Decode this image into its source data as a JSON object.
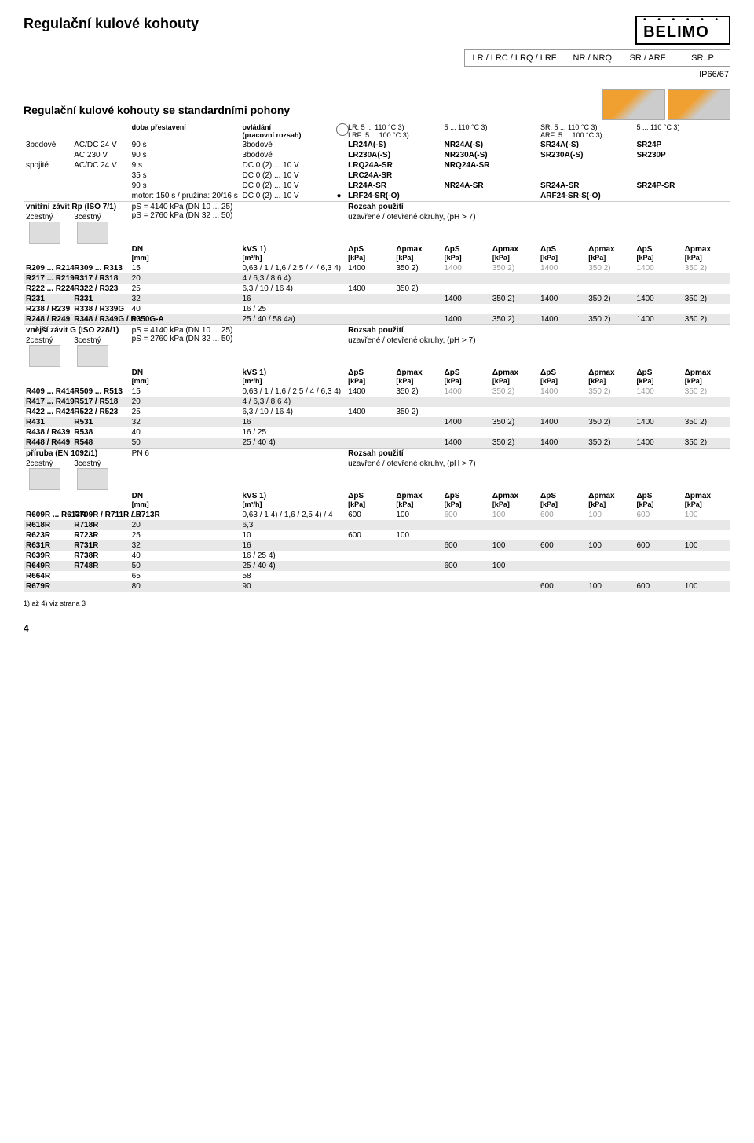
{
  "page": {
    "title": "Regulační kulové kohouty",
    "subtitle": "Regulační kulové kohouty se standardními pohony",
    "logo": "BELIMO",
    "page_number": "4",
    "footnote": "1) až 4) viz strana 3"
  },
  "header_boxes": [
    "LR / LRC / LRQ / LRF",
    "NR / NRQ",
    "SR / ARF",
    "SR..P"
  ],
  "ip_rating": "IP66/67",
  "col_headers": {
    "doba": "doba přestavení",
    "ovladani": "ovládání\n(pracovní rozsah)",
    "lr": "LR: 5 ... 110 °C 3)",
    "lrf": "LRF: 5 ... 100 °C 3)",
    "mid": "5 ... 110 °C 3)",
    "sr": "SR: 5 ... 110 °C 3)",
    "arf": "ARF: 5 ... 100 °C 3)",
    "last": "5 ... 110 °C 3)"
  },
  "control_rows": [
    {
      "label_l": "3bodové",
      "supply": "AC/DC 24 V",
      "time": "90 s",
      "ctrl": "3bodové",
      "c1": "LR24A(-S)",
      "c2": "NR24A(-S)",
      "c3": "SR24A(-S)",
      "c4": "SR24P"
    },
    {
      "label_l": "",
      "supply": "AC 230 V",
      "time": "90 s",
      "ctrl": "3bodové",
      "c1": "LR230A(-S)",
      "c2": "NR230A(-S)",
      "c3": "SR230A(-S)",
      "c4": "SR230P"
    },
    {
      "label_l": "spojité",
      "supply": "AC/DC 24 V",
      "time": "9 s",
      "ctrl": "DC 0 (2) ... 10 V",
      "c1": "LRQ24A-SR",
      "c2": "NRQ24A-SR",
      "c3": "",
      "c4": ""
    },
    {
      "label_l": "",
      "supply": "",
      "time": "35 s",
      "ctrl": "DC 0 (2) ... 10 V",
      "c1": "LRC24A-SR",
      "c2": "",
      "c3": "",
      "c4": ""
    },
    {
      "label_l": "",
      "supply": "",
      "time": "90 s",
      "ctrl": "DC 0 (2) ... 10 V",
      "c1": "LR24A-SR",
      "c2": "NR24A-SR",
      "c3": "SR24A-SR",
      "c4": "SR24P-SR"
    },
    {
      "label_l": "",
      "supply": "",
      "time": "motor: 150 s / pružina: 20/16 s",
      "ctrl": "DC 0 (2) ... 10 V",
      "dot": "●",
      "c1": "LRF24-SR(-O)",
      "c2": "",
      "c3": "ARF24-SR-S(-O)",
      "c4": ""
    }
  ],
  "section1": {
    "title_l": "vnitřní závit Rp (ISO 7/1)",
    "two": "2cestný",
    "three": "3cestný",
    "ps": "pS = 4140 kPa (DN 10 ... 25)\npS = 2760 kPa (DN 32 ... 50)",
    "rozsah_t": "Rozsah použití",
    "rozsah_d": "uzavřené / otevřené okruhy, (pH > 7)"
  },
  "dp_headers": {
    "dn": "DN",
    "dn_u": "[mm]",
    "kvs": "kVS 1)",
    "kvs_u": "[m³/h]",
    "dps": "ΔpS",
    "dps_u": "[kPa]",
    "dpm": "Δpmax",
    "dpm_u": "[kPa]"
  },
  "tbl1": [
    {
      "a": "R209 ... R214",
      "b": "R309 ... R313",
      "dn": "15",
      "kvs": "0,63 / 1 / 1,6 / 2,5 / 4 / 6,3 4)",
      "v": [
        [
          "1400",
          "350 2)"
        ],
        [
          "1400",
          "350 2)",
          "g"
        ],
        [
          "1400",
          "350 2)",
          "g"
        ],
        [
          "1400",
          "350 2)",
          "g"
        ]
      ],
      "shade": false
    },
    {
      "a": "R217 ... R219",
      "b": "R317 / R318",
      "dn": "20",
      "kvs": "4 / 6,3 / 8,6 4)",
      "v": [],
      "shade": true
    },
    {
      "a": "R222 ... R224",
      "b": "R322 / R323",
      "dn": "25",
      "kvs": "6,3 / 10 / 16 4)",
      "v": [
        [
          "1400",
          "350 2)"
        ]
      ],
      "shade": false
    },
    {
      "a": "R231",
      "b": "R331",
      "dn": "32",
      "kvs": "16",
      "v": [
        [
          "",
          ""
        ],
        [
          "1400",
          "350 2)"
        ],
        [
          "1400",
          "350 2)"
        ],
        [
          "1400",
          "350 2)"
        ]
      ],
      "shade": true
    },
    {
      "a": "R238 / R239",
      "b": "R338 / R339G",
      "dn": "40",
      "kvs": "16 / 25",
      "v": [],
      "shade": false
    },
    {
      "a": "R248 / R249",
      "b": "R348 / R349G / R350G-A",
      "dn": "50",
      "kvs": "25 / 40 / 58 4a)",
      "v": [
        [
          "",
          ""
        ],
        [
          "1400",
          "350 2)"
        ],
        [
          "1400",
          "350 2)"
        ],
        [
          "1400",
          "350 2)"
        ]
      ],
      "shade": true
    }
  ],
  "section2": {
    "title_l": "vnější závit G (ISO 228/1)",
    "two": "2cestný",
    "three": "3cestný",
    "ps": "pS = 4140 kPa (DN 10 ... 25)\npS = 2760 kPa (DN 32 ... 50)",
    "rozsah_t": "Rozsah použití",
    "rozsah_d": "uzavřené / otevřené okruhy, (pH > 7)"
  },
  "tbl2": [
    {
      "a": "R409 ... R414",
      "b": "R509 ... R513",
      "dn": "15",
      "kvs": "0,63 / 1 / 1,6 / 2,5 / 4 / 6,3 4)",
      "v": [
        [
          "1400",
          "350 2)"
        ],
        [
          "1400",
          "350 2)",
          "g"
        ],
        [
          "1400",
          "350 2)",
          "g"
        ],
        [
          "1400",
          "350 2)",
          "g"
        ]
      ],
      "shade": false
    },
    {
      "a": "R417 ... R419",
      "b": "R517 / R518",
      "dn": "20",
      "kvs": "4 / 6,3 / 8,6 4)",
      "v": [],
      "shade": true
    },
    {
      "a": "R422 ... R424",
      "b": "R522 / R523",
      "dn": "25",
      "kvs": "6,3 / 10 / 16 4)",
      "v": [
        [
          "1400",
          "350 2)"
        ]
      ],
      "shade": false
    },
    {
      "a": "R431",
      "b": "R531",
      "dn": "32",
      "kvs": "16",
      "v": [
        [
          "",
          ""
        ],
        [
          "1400",
          "350 2)"
        ],
        [
          "1400",
          "350 2)"
        ],
        [
          "1400",
          "350 2)"
        ]
      ],
      "shade": true
    },
    {
      "a": "R438 / R439",
      "b": "R538",
      "dn": "40",
      "kvs": "16 / 25",
      "v": [],
      "shade": false
    },
    {
      "a": "R448 / R449",
      "b": "R548",
      "dn": "50",
      "kvs": "25 / 40 4)",
      "v": [
        [
          "",
          ""
        ],
        [
          "1400",
          "350 2)"
        ],
        [
          "1400",
          "350 2)"
        ],
        [
          "1400",
          "350 2)"
        ]
      ],
      "shade": true
    }
  ],
  "section3": {
    "title_l": "příruba (EN 1092/1)",
    "two": "2cestný",
    "three": "3cestný",
    "ps": "PN 6",
    "rozsah_t": "Rozsah použití",
    "rozsah_d": "uzavřené / otevřené okruhy, (pH > 7)"
  },
  "tbl3": [
    {
      "a": "R609R ... R613R",
      "b": "R709R / R711R / R713R",
      "dn": "15",
      "kvs": "0,63 / 1 4) / 1,6 / 2,5 4) / 4",
      "v": [
        [
          "600",
          "100"
        ],
        [
          "600",
          "100",
          "g"
        ],
        [
          "600",
          "100",
          "g"
        ],
        [
          "600",
          "100",
          "g"
        ]
      ],
      "shade": false
    },
    {
      "a": "R618R",
      "b": "R718R",
      "dn": "20",
      "kvs": "6,3",
      "v": [],
      "shade": true
    },
    {
      "a": "R623R",
      "b": "R723R",
      "dn": "25",
      "kvs": "10",
      "v": [
        [
          "600",
          "100"
        ]
      ],
      "shade": false
    },
    {
      "a": "R631R",
      "b": "R731R",
      "dn": "32",
      "kvs": "16",
      "v": [
        [
          "",
          ""
        ],
        [
          "600",
          "100"
        ],
        [
          "600",
          "100"
        ],
        [
          "600",
          "100"
        ]
      ],
      "shade": true
    },
    {
      "a": "R639R",
      "b": "R738R",
      "dn": "40",
      "kvs": "16 / 25 4)",
      "v": [],
      "shade": false
    },
    {
      "a": "R649R",
      "b": "R748R",
      "dn": "50",
      "kvs": "25 / 40 4)",
      "v": [
        [
          "",
          ""
        ],
        [
          "600",
          "100"
        ]
      ],
      "shade": true
    },
    {
      "a": "R664R",
      "b": "",
      "dn": "65",
      "kvs": "58",
      "v": [],
      "shade": false
    },
    {
      "a": "R679R",
      "b": "",
      "dn": "80",
      "kvs": "90",
      "v": [
        [
          "",
          ""
        ],
        [
          "",
          ""
        ],
        [
          "600",
          "100"
        ],
        [
          "600",
          "100"
        ]
      ],
      "shade": true
    }
  ]
}
